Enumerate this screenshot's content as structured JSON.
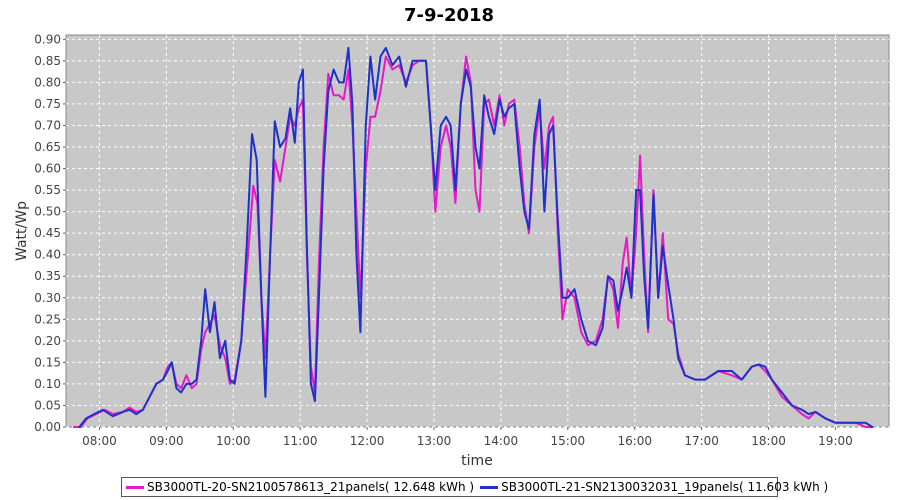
{
  "chart_data": {
    "type": "line",
    "title": "7-9-2018",
    "xlabel": "time",
    "ylabel": "Watt/Wp",
    "x_ticks": [
      "08:00",
      "09:00",
      "10:00",
      "11:00",
      "12:00",
      "13:00",
      "14:00",
      "15:00",
      "16:00",
      "17:00",
      "18:00",
      "19:00"
    ],
    "y_ticks": [
      "0.00",
      "0.05",
      "0.10",
      "0.15",
      "0.20",
      "0.25",
      "0.30",
      "0.35",
      "0.40",
      "0.45",
      "0.50",
      "0.55",
      "0.60",
      "0.65",
      "0.70",
      "0.75",
      "0.80",
      "0.85",
      "0.90"
    ],
    "xlim": [
      7.5,
      19.8
    ],
    "ylim": [
      0,
      0.91
    ],
    "grid": true,
    "legend_position": "bottom",
    "plot_background": "#c8c8c8",
    "series": [
      {
        "name": "SB3000TL-20-SN2100578613_21panels( 12.648 kWh )",
        "color": "#e619c8",
        "points": [
          [
            7.62,
            0.0
          ],
          [
            7.72,
            0.0
          ],
          [
            7.82,
            0.02
          ],
          [
            7.95,
            0.03
          ],
          [
            8.08,
            0.04
          ],
          [
            8.2,
            0.03
          ],
          [
            8.35,
            0.035
          ],
          [
            8.45,
            0.045
          ],
          [
            8.55,
            0.035
          ],
          [
            8.65,
            0.04
          ],
          [
            8.75,
            0.07
          ],
          [
            8.85,
            0.1
          ],
          [
            8.95,
            0.11
          ],
          [
            9.02,
            0.14
          ],
          [
            9.08,
            0.15
          ],
          [
            9.15,
            0.1
          ],
          [
            9.22,
            0.09
          ],
          [
            9.3,
            0.12
          ],
          [
            9.38,
            0.09
          ],
          [
            9.45,
            0.1
          ],
          [
            9.52,
            0.18
          ],
          [
            9.58,
            0.22
          ],
          [
            9.65,
            0.24
          ],
          [
            9.72,
            0.26
          ],
          [
            9.8,
            0.19
          ],
          [
            9.88,
            0.16
          ],
          [
            9.95,
            0.1
          ],
          [
            10.02,
            0.11
          ],
          [
            10.12,
            0.2
          ],
          [
            10.22,
            0.4
          ],
          [
            10.3,
            0.56
          ],
          [
            10.36,
            0.52
          ],
          [
            10.42,
            0.3
          ],
          [
            10.48,
            0.16
          ],
          [
            10.55,
            0.4
          ],
          [
            10.62,
            0.62
          ],
          [
            10.7,
            0.57
          ],
          [
            10.78,
            0.65
          ],
          [
            10.85,
            0.72
          ],
          [
            10.92,
            0.7
          ],
          [
            10.98,
            0.74
          ],
          [
            11.04,
            0.76
          ],
          [
            11.1,
            0.4
          ],
          [
            11.16,
            0.14
          ],
          [
            11.22,
            0.08
          ],
          [
            11.28,
            0.38
          ],
          [
            11.35,
            0.65
          ],
          [
            11.42,
            0.82
          ],
          [
            11.5,
            0.77
          ],
          [
            11.58,
            0.77
          ],
          [
            11.65,
            0.76
          ],
          [
            11.72,
            0.83
          ],
          [
            11.78,
            0.7
          ],
          [
            11.84,
            0.5
          ],
          [
            11.9,
            0.3
          ],
          [
            11.98,
            0.6
          ],
          [
            12.05,
            0.72
          ],
          [
            12.12,
            0.72
          ],
          [
            12.2,
            0.78
          ],
          [
            12.28,
            0.86
          ],
          [
            12.38,
            0.83
          ],
          [
            12.48,
            0.84
          ],
          [
            12.58,
            0.8
          ],
          [
            12.68,
            0.84
          ],
          [
            12.78,
            0.85
          ],
          [
            12.88,
            0.85
          ],
          [
            12.95,
            0.7
          ],
          [
            13.02,
            0.5
          ],
          [
            13.1,
            0.65
          ],
          [
            13.18,
            0.7
          ],
          [
            13.25,
            0.65
          ],
          [
            13.32,
            0.52
          ],
          [
            13.4,
            0.75
          ],
          [
            13.48,
            0.86
          ],
          [
            13.55,
            0.8
          ],
          [
            13.62,
            0.55
          ],
          [
            13.68,
            0.5
          ],
          [
            13.75,
            0.75
          ],
          [
            13.82,
            0.76
          ],
          [
            13.9,
            0.7
          ],
          [
            13.98,
            0.77
          ],
          [
            14.05,
            0.7
          ],
          [
            14.12,
            0.75
          ],
          [
            14.2,
            0.76
          ],
          [
            14.28,
            0.65
          ],
          [
            14.35,
            0.52
          ],
          [
            14.42,
            0.45
          ],
          [
            14.5,
            0.65
          ],
          [
            14.58,
            0.74
          ],
          [
            14.65,
            0.6
          ],
          [
            14.72,
            0.7
          ],
          [
            14.78,
            0.72
          ],
          [
            14.85,
            0.45
          ],
          [
            14.92,
            0.25
          ],
          [
            15.0,
            0.32
          ],
          [
            15.1,
            0.3
          ],
          [
            15.2,
            0.22
          ],
          [
            15.3,
            0.19
          ],
          [
            15.42,
            0.2
          ],
          [
            15.52,
            0.25
          ],
          [
            15.6,
            0.35
          ],
          [
            15.68,
            0.32
          ],
          [
            15.75,
            0.23
          ],
          [
            15.82,
            0.38
          ],
          [
            15.88,
            0.44
          ],
          [
            15.95,
            0.3
          ],
          [
            16.02,
            0.45
          ],
          [
            16.08,
            0.63
          ],
          [
            16.14,
            0.4
          ],
          [
            16.2,
            0.22
          ],
          [
            16.28,
            0.55
          ],
          [
            16.35,
            0.3
          ],
          [
            16.42,
            0.45
          ],
          [
            16.5,
            0.25
          ],
          [
            16.58,
            0.24
          ],
          [
            16.65,
            0.17
          ],
          [
            16.75,
            0.12
          ],
          [
            16.9,
            0.11
          ],
          [
            17.05,
            0.11
          ],
          [
            17.25,
            0.13
          ],
          [
            17.45,
            0.12
          ],
          [
            17.6,
            0.11
          ],
          [
            17.75,
            0.14
          ],
          [
            17.85,
            0.145
          ],
          [
            17.95,
            0.13
          ],
          [
            18.05,
            0.11
          ],
          [
            18.2,
            0.07
          ],
          [
            18.35,
            0.05
          ],
          [
            18.5,
            0.03
          ],
          [
            18.6,
            0.02
          ],
          [
            18.7,
            0.035
          ],
          [
            18.85,
            0.02
          ],
          [
            19.0,
            0.01
          ],
          [
            19.3,
            0.01
          ],
          [
            19.45,
            0.0
          ],
          [
            19.55,
            0.0
          ]
        ]
      },
      {
        "name": "SB3000TL-21-SN2130032031_19panels( 11.603 kWh )",
        "color": "#1e32c8",
        "points": [
          [
            7.7,
            0.0
          ],
          [
            7.8,
            0.02
          ],
          [
            7.92,
            0.03
          ],
          [
            8.05,
            0.04
          ],
          [
            8.2,
            0.025
          ],
          [
            8.35,
            0.035
          ],
          [
            8.45,
            0.04
          ],
          [
            8.55,
            0.03
          ],
          [
            8.65,
            0.04
          ],
          [
            8.75,
            0.07
          ],
          [
            8.85,
            0.1
          ],
          [
            8.95,
            0.11
          ],
          [
            9.02,
            0.13
          ],
          [
            9.08,
            0.15
          ],
          [
            9.15,
            0.09
          ],
          [
            9.22,
            0.08
          ],
          [
            9.3,
            0.1
          ],
          [
            9.38,
            0.1
          ],
          [
            9.45,
            0.11
          ],
          [
            9.52,
            0.2
          ],
          [
            9.58,
            0.32
          ],
          [
            9.65,
            0.22
          ],
          [
            9.72,
            0.29
          ],
          [
            9.8,
            0.16
          ],
          [
            9.88,
            0.2
          ],
          [
            9.95,
            0.11
          ],
          [
            10.02,
            0.1
          ],
          [
            10.12,
            0.2
          ],
          [
            10.2,
            0.42
          ],
          [
            10.28,
            0.68
          ],
          [
            10.35,
            0.62
          ],
          [
            10.42,
            0.3
          ],
          [
            10.48,
            0.07
          ],
          [
            10.55,
            0.4
          ],
          [
            10.62,
            0.71
          ],
          [
            10.7,
            0.65
          ],
          [
            10.78,
            0.67
          ],
          [
            10.85,
            0.74
          ],
          [
            10.92,
            0.66
          ],
          [
            10.98,
            0.8
          ],
          [
            11.04,
            0.83
          ],
          [
            11.1,
            0.42
          ],
          [
            11.16,
            0.1
          ],
          [
            11.22,
            0.06
          ],
          [
            11.28,
            0.3
          ],
          [
            11.35,
            0.6
          ],
          [
            11.42,
            0.78
          ],
          [
            11.5,
            0.83
          ],
          [
            11.58,
            0.8
          ],
          [
            11.65,
            0.8
          ],
          [
            11.72,
            0.88
          ],
          [
            11.78,
            0.75
          ],
          [
            11.84,
            0.4
          ],
          [
            11.9,
            0.22
          ],
          [
            11.98,
            0.7
          ],
          [
            12.05,
            0.86
          ],
          [
            12.12,
            0.76
          ],
          [
            12.2,
            0.86
          ],
          [
            12.28,
            0.88
          ],
          [
            12.38,
            0.84
          ],
          [
            12.48,
            0.86
          ],
          [
            12.58,
            0.79
          ],
          [
            12.68,
            0.85
          ],
          [
            12.78,
            0.85
          ],
          [
            12.88,
            0.85
          ],
          [
            12.95,
            0.7
          ],
          [
            13.02,
            0.55
          ],
          [
            13.1,
            0.7
          ],
          [
            13.18,
            0.72
          ],
          [
            13.25,
            0.7
          ],
          [
            13.32,
            0.55
          ],
          [
            13.4,
            0.75
          ],
          [
            13.48,
            0.83
          ],
          [
            13.55,
            0.79
          ],
          [
            13.62,
            0.65
          ],
          [
            13.68,
            0.6
          ],
          [
            13.75,
            0.77
          ],
          [
            13.82,
            0.72
          ],
          [
            13.9,
            0.68
          ],
          [
            13.98,
            0.76
          ],
          [
            14.05,
            0.72
          ],
          [
            14.12,
            0.74
          ],
          [
            14.2,
            0.75
          ],
          [
            14.28,
            0.6
          ],
          [
            14.35,
            0.5
          ],
          [
            14.42,
            0.46
          ],
          [
            14.5,
            0.68
          ],
          [
            14.58,
            0.76
          ],
          [
            14.65,
            0.5
          ],
          [
            14.72,
            0.68
          ],
          [
            14.78,
            0.7
          ],
          [
            14.85,
            0.48
          ],
          [
            14.92,
            0.3
          ],
          [
            15.0,
            0.3
          ],
          [
            15.1,
            0.32
          ],
          [
            15.2,
            0.25
          ],
          [
            15.3,
            0.2
          ],
          [
            15.42,
            0.19
          ],
          [
            15.52,
            0.23
          ],
          [
            15.6,
            0.35
          ],
          [
            15.68,
            0.34
          ],
          [
            15.75,
            0.27
          ],
          [
            15.82,
            0.32
          ],
          [
            15.88,
            0.37
          ],
          [
            15.95,
            0.3
          ],
          [
            16.02,
            0.55
          ],
          [
            16.08,
            0.55
          ],
          [
            16.14,
            0.35
          ],
          [
            16.2,
            0.23
          ],
          [
            16.28,
            0.54
          ],
          [
            16.35,
            0.3
          ],
          [
            16.42,
            0.42
          ],
          [
            16.5,
            0.33
          ],
          [
            16.58,
            0.25
          ],
          [
            16.65,
            0.16
          ],
          [
            16.75,
            0.12
          ],
          [
            16.9,
            0.11
          ],
          [
            17.05,
            0.11
          ],
          [
            17.25,
            0.13
          ],
          [
            17.45,
            0.13
          ],
          [
            17.6,
            0.11
          ],
          [
            17.75,
            0.14
          ],
          [
            17.85,
            0.145
          ],
          [
            17.95,
            0.14
          ],
          [
            18.05,
            0.11
          ],
          [
            18.2,
            0.08
          ],
          [
            18.35,
            0.05
          ],
          [
            18.5,
            0.04
          ],
          [
            18.6,
            0.03
          ],
          [
            18.7,
            0.035
          ],
          [
            18.85,
            0.02
          ],
          [
            19.0,
            0.01
          ],
          [
            19.3,
            0.01
          ],
          [
            19.45,
            0.01
          ],
          [
            19.55,
            0.0
          ]
        ]
      }
    ]
  }
}
